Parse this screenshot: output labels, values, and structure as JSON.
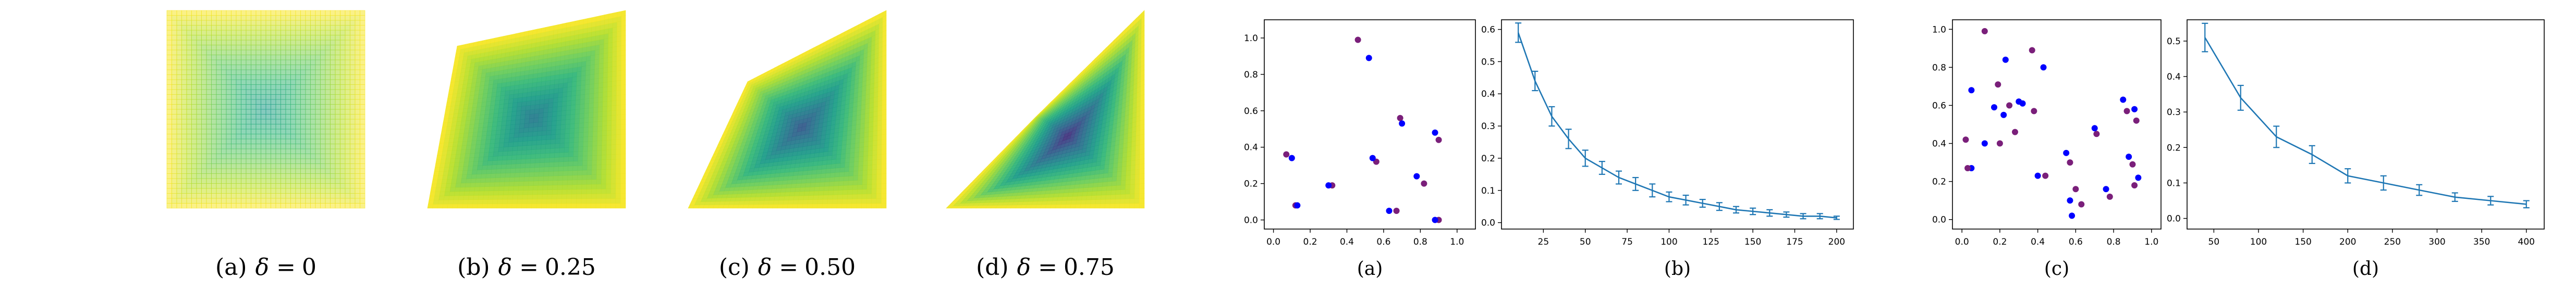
{
  "left_group": {
    "panels": [
      {
        "tag": "(a)",
        "delta": "0",
        "warp": 0.0
      },
      {
        "tag": "(b)",
        "delta": "0.25",
        "warp": 0.25
      },
      {
        "tag": "(c)",
        "delta": "0.50",
        "warp": 0.5
      },
      {
        "tag": "(d)",
        "delta": "0.75",
        "warp": 0.75
      }
    ],
    "colormap": "viridis",
    "delta_symbol": "δ ="
  },
  "chart_data": [
    {
      "type": "scatter",
      "caption": "(a)",
      "xlim": [
        -0.05,
        1.1
      ],
      "ylim": [
        -0.05,
        1.1
      ],
      "xticks": [
        "0.0",
        "0.2",
        "0.4",
        "0.6",
        "0.8",
        "1.0"
      ],
      "yticks": [
        "0.0",
        "0.2",
        "0.4",
        "0.6",
        "0.8",
        "1.0"
      ],
      "colors": {
        "blue": "#0000ff",
        "purple": "#7a1f7a"
      },
      "pairs": [
        {
          "blue": [
            0.1,
            0.34
          ],
          "purple": [
            0.07,
            0.36
          ]
        },
        {
          "blue": [
            0.13,
            0.08
          ],
          "purple": [
            0.12,
            0.08
          ]
        },
        {
          "blue": [
            0.3,
            0.19
          ],
          "purple": [
            0.32,
            0.19
          ]
        },
        {
          "blue": [
            0.52,
            0.89
          ],
          "purple": [
            0.46,
            0.99
          ]
        },
        {
          "blue": [
            0.54,
            0.34
          ],
          "purple": [
            0.56,
            0.32
          ]
        },
        {
          "blue": [
            0.63,
            0.05
          ],
          "purple": [
            0.67,
            0.05
          ]
        },
        {
          "blue": [
            0.7,
            0.53
          ],
          "purple": [
            0.69,
            0.56
          ]
        },
        {
          "blue": [
            0.78,
            0.24
          ],
          "purple": [
            0.82,
            0.2
          ]
        },
        {
          "blue": [
            0.88,
            0.48
          ],
          "purple": [
            0.9,
            0.44
          ]
        },
        {
          "blue": [
            0.88,
            0.0
          ],
          "purple": [
            0.9,
            0.0
          ]
        }
      ]
    },
    {
      "type": "line",
      "caption": "(b)",
      "xlim": [
        0,
        210
      ],
      "ylim": [
        -0.02,
        0.63
      ],
      "xticks": [
        "25",
        "50",
        "75",
        "100",
        "125",
        "150",
        "175",
        "200"
      ],
      "yticks": [
        "0.0",
        "0.1",
        "0.2",
        "0.3",
        "0.4",
        "0.5",
        "0.6"
      ],
      "color": "#1f77b4",
      "x": [
        10,
        20,
        30,
        40,
        50,
        60,
        70,
        80,
        90,
        100,
        110,
        120,
        130,
        140,
        150,
        160,
        170,
        180,
        190,
        200
      ],
      "y": [
        0.59,
        0.44,
        0.33,
        0.26,
        0.2,
        0.17,
        0.14,
        0.12,
        0.1,
        0.08,
        0.07,
        0.06,
        0.05,
        0.04,
        0.035,
        0.03,
        0.025,
        0.02,
        0.02,
        0.015
      ],
      "err": [
        0.03,
        0.03,
        0.03,
        0.03,
        0.025,
        0.02,
        0.02,
        0.02,
        0.02,
        0.015,
        0.015,
        0.012,
        0.012,
        0.01,
        0.01,
        0.01,
        0.008,
        0.008,
        0.008,
        0.005
      ]
    },
    {
      "type": "scatter",
      "caption": "(c)",
      "xlim": [
        -0.05,
        1.05
      ],
      "ylim": [
        -0.05,
        1.05
      ],
      "xticks": [
        "0.0",
        "0.2",
        "0.4",
        "0.6",
        "0.8",
        "1.0"
      ],
      "yticks": [
        "0.0",
        "0.2",
        "0.4",
        "0.6",
        "0.8",
        "1.0"
      ],
      "colors": {
        "blue": "#0000ff",
        "purple": "#7a1f7a"
      },
      "pairs": [
        {
          "blue": [
            0.05,
            0.27
          ],
          "purple": [
            0.02,
            0.42
          ]
        },
        {
          "blue": [
            0.05,
            0.68
          ],
          "purple": [
            0.03,
            0.27
          ]
        },
        {
          "blue": [
            0.12,
            0.4
          ],
          "purple": [
            0.12,
            0.99
          ]
        },
        {
          "blue": [
            0.17,
            0.59
          ],
          "purple": [
            0.19,
            0.71
          ]
        },
        {
          "blue": [
            0.22,
            0.55
          ],
          "purple": [
            0.2,
            0.4
          ]
        },
        {
          "blue": [
            0.23,
            0.84
          ],
          "purple": [
            0.25,
            0.6
          ]
        },
        {
          "blue": [
            0.3,
            0.62
          ],
          "purple": [
            0.28,
            0.46
          ]
        },
        {
          "blue": [
            0.32,
            0.61
          ],
          "purple": [
            0.37,
            0.89
          ]
        },
        {
          "blue": [
            0.4,
            0.23
          ],
          "purple": [
            0.38,
            0.57
          ]
        },
        {
          "blue": [
            0.43,
            0.8
          ],
          "purple": [
            0.44,
            0.23
          ]
        },
        {
          "blue": [
            0.55,
            0.35
          ],
          "purple": [
            0.57,
            0.3
          ]
        },
        {
          "blue": [
            0.57,
            0.1
          ],
          "purple": [
            0.6,
            0.16
          ]
        },
        {
          "blue": [
            0.58,
            0.02
          ],
          "purple": [
            0.63,
            0.08
          ]
        },
        {
          "blue": [
            0.7,
            0.48
          ],
          "purple": [
            0.71,
            0.45
          ]
        },
        {
          "blue": [
            0.76,
            0.16
          ],
          "purple": [
            0.78,
            0.12
          ]
        },
        {
          "blue": [
            0.85,
            0.63
          ],
          "purple": [
            0.87,
            0.57
          ]
        },
        {
          "blue": [
            0.88,
            0.33
          ],
          "purple": [
            0.9,
            0.29
          ]
        },
        {
          "blue": [
            0.91,
            0.58
          ],
          "purple": [
            0.92,
            0.52
          ]
        },
        {
          "blue": [
            0.93,
            0.22
          ],
          "purple": [
            0.91,
            0.18
          ]
        }
      ]
    },
    {
      "type": "line",
      "caption": "(d)",
      "xlim": [
        20,
        420
      ],
      "ylim": [
        -0.03,
        0.56
      ],
      "xticks": [
        "50",
        "100",
        "150",
        "200",
        "250",
        "300",
        "350",
        "400"
      ],
      "yticks": [
        "0.0",
        "0.1",
        "0.2",
        "0.3",
        "0.4",
        "0.5"
      ],
      "color": "#1f77b4",
      "x": [
        40,
        80,
        120,
        160,
        200,
        240,
        280,
        320,
        360,
        400
      ],
      "y": [
        0.51,
        0.34,
        0.23,
        0.18,
        0.12,
        0.1,
        0.08,
        0.06,
        0.05,
        0.04
      ],
      "err": [
        0.04,
        0.035,
        0.03,
        0.025,
        0.02,
        0.02,
        0.015,
        0.012,
        0.012,
        0.01
      ]
    }
  ]
}
